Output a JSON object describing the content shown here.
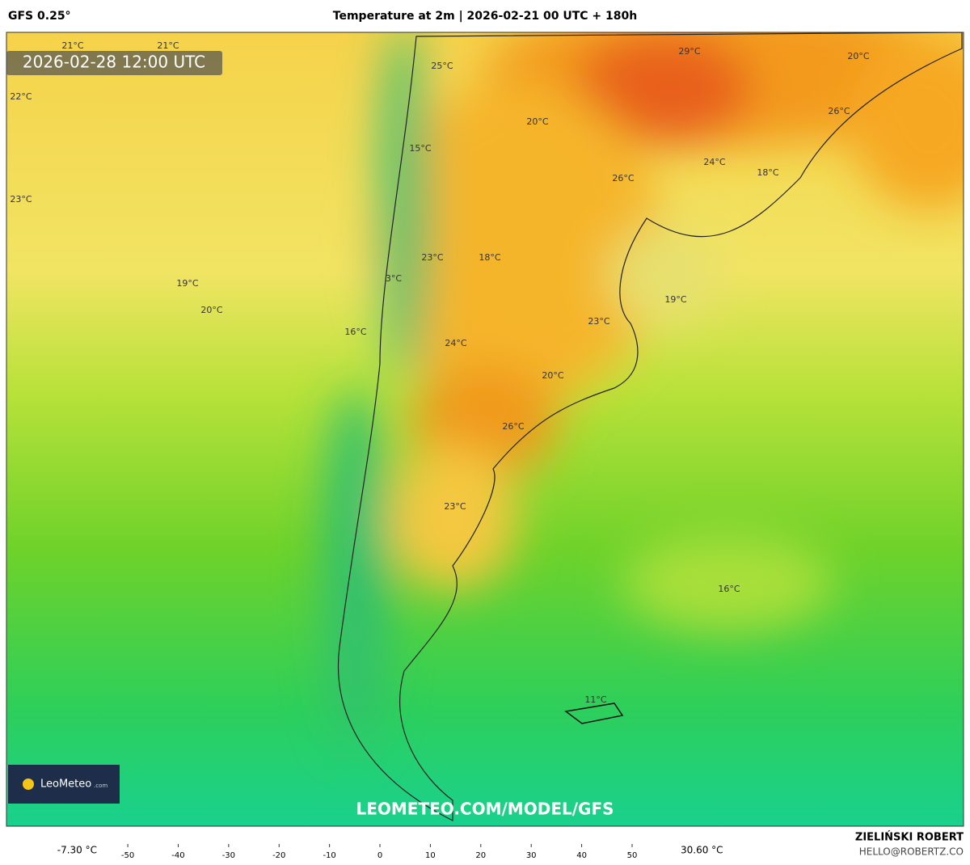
{
  "header": {
    "model": "GFS 0.25°",
    "title": "Temperature at 2m | 2026-02-21 00 UTC + 180h"
  },
  "map": {
    "valid_time": "2026-02-28 12:00 UTC",
    "watermark": "LEOMETEO.COM/MODEL/GFS",
    "logo": "LeoMeteo",
    "logo_suffix": ".com",
    "labels": [
      "21°C",
      "21°C",
      "22°C",
      "23°C",
      "19°C",
      "20°C",
      "25°C",
      "20°C",
      "29°C",
      "20°C",
      "26°C",
      "26°C",
      "24°C",
      "18°C",
      "15°C",
      "23°C",
      "18°C",
      "3°C",
      "19°C",
      "23°C",
      "16°C",
      "24°C",
      "20°C",
      "26°C",
      "23°C",
      "16°C",
      "11°C"
    ]
  },
  "colorbar": {
    "min_label": "-7.30 °C",
    "max_label": "30.60 °C",
    "lim": [
      -53.7,
      58.5
    ],
    "ticks": [
      -50,
      -40,
      -30,
      -20,
      -10,
      0,
      10,
      20,
      30,
      40,
      50
    ]
  },
  "footer": {
    "author": "ZIELIŃSKI ROBERT",
    "email": "HELLO@ROBERTZ.CO"
  }
}
